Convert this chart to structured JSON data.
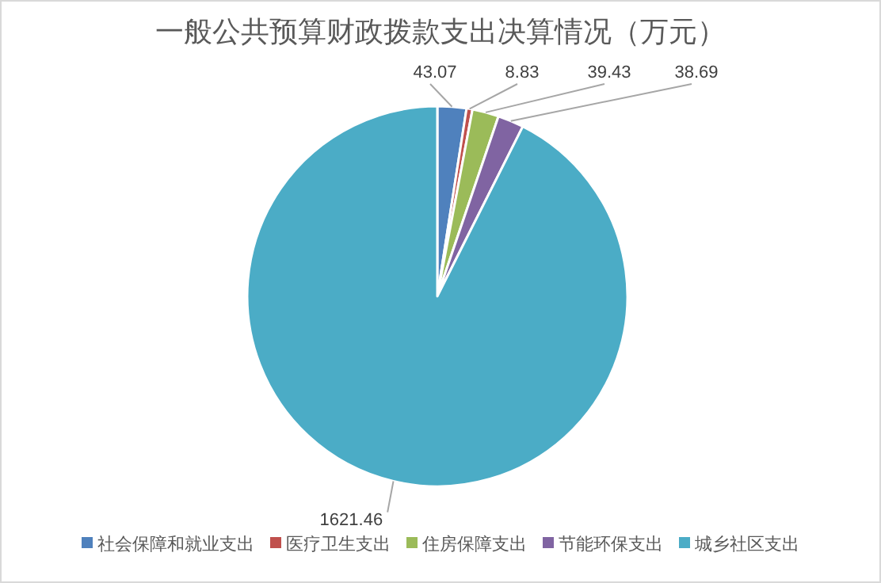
{
  "chart_data": {
    "type": "pie",
    "title": "一般公共预算财政拨款支出决算情况（万元）",
    "categories": [
      "社会保障和就业支出",
      "医疗卫生支出",
      "住房保障支出",
      "节能环保支出",
      "城乡社区支出"
    ],
    "values": [
      43.07,
      8.83,
      39.43,
      38.69,
      1621.46
    ],
    "colors": [
      "#4f81bd",
      "#c0504d",
      "#9bbb59",
      "#8064a2",
      "#4bacc6"
    ],
    "data_labels": true,
    "legend": "bottom"
  }
}
